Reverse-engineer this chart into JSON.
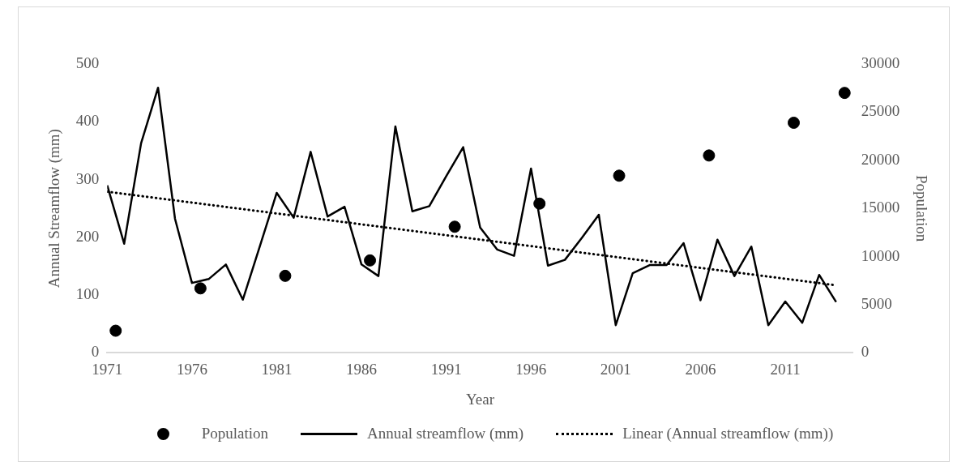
{
  "chart_data": {
    "type": "line",
    "xlabel": "Year",
    "ylabel": "Annual Streamflow (mm)",
    "y2label": "Population",
    "xlim": [
      1971,
      2015
    ],
    "xticks": [
      1971,
      1976,
      1981,
      1986,
      1991,
      1996,
      2001,
      2006,
      2011
    ],
    "ylim": [
      0,
      500
    ],
    "yticks": [
      0,
      100,
      200,
      300,
      400,
      500
    ],
    "y2lim": [
      0,
      30000
    ],
    "y2ticks": [
      0,
      5000,
      10000,
      15000,
      20000,
      25000,
      30000
    ],
    "grid": false,
    "legend": "bottom",
    "series": [
      {
        "name": "Population",
        "type": "scatter",
        "axis": "y2",
        "marker": "circle",
        "color": "#000000",
        "x": [
          1971.5,
          1976.5,
          1981.5,
          1986.5,
          1991.5,
          1996.5,
          2001.2,
          2006.5,
          2011.5,
          2014.5
        ],
        "values": [
          2300,
          6700,
          8000,
          9600,
          13100,
          15500,
          18400,
          20500,
          23900,
          27000
        ]
      },
      {
        "name": "Annual streamflow (mm)",
        "line_style": "solid",
        "marker": "none",
        "color": "#000000",
        "x": [
          1971,
          1972,
          1973,
          1974,
          1975,
          1976,
          1977,
          1978,
          1979,
          1980,
          1981,
          1982,
          1983,
          1984,
          1985,
          1986,
          1987,
          1988,
          1989,
          1990,
          1991,
          1992,
          1993,
          1994,
          1995,
          1996,
          1997,
          1998,
          1999,
          2000,
          2001,
          2002,
          2003,
          2004,
          2005,
          2006,
          2007,
          2008,
          2009,
          2010,
          2011,
          2012,
          2013,
          2014
        ],
        "values": [
          290,
          189,
          363,
          459,
          232,
          121,
          128,
          153,
          92,
          184,
          277,
          234,
          348,
          236,
          253,
          153,
          133,
          392,
          245,
          254,
          306,
          356,
          217,
          179,
          168,
          319,
          151,
          161,
          199,
          239,
          48,
          138,
          152,
          152,
          190,
          91,
          196,
          133,
          184,
          48,
          89,
          52,
          135,
          88
        ]
      },
      {
        "name": "Linear (Annual streamflow (mm))",
        "line_style": "dotted",
        "marker": "none",
        "color": "#000000",
        "x": [
          1971,
          2014
        ],
        "values": [
          279,
          117
        ]
      }
    ]
  }
}
